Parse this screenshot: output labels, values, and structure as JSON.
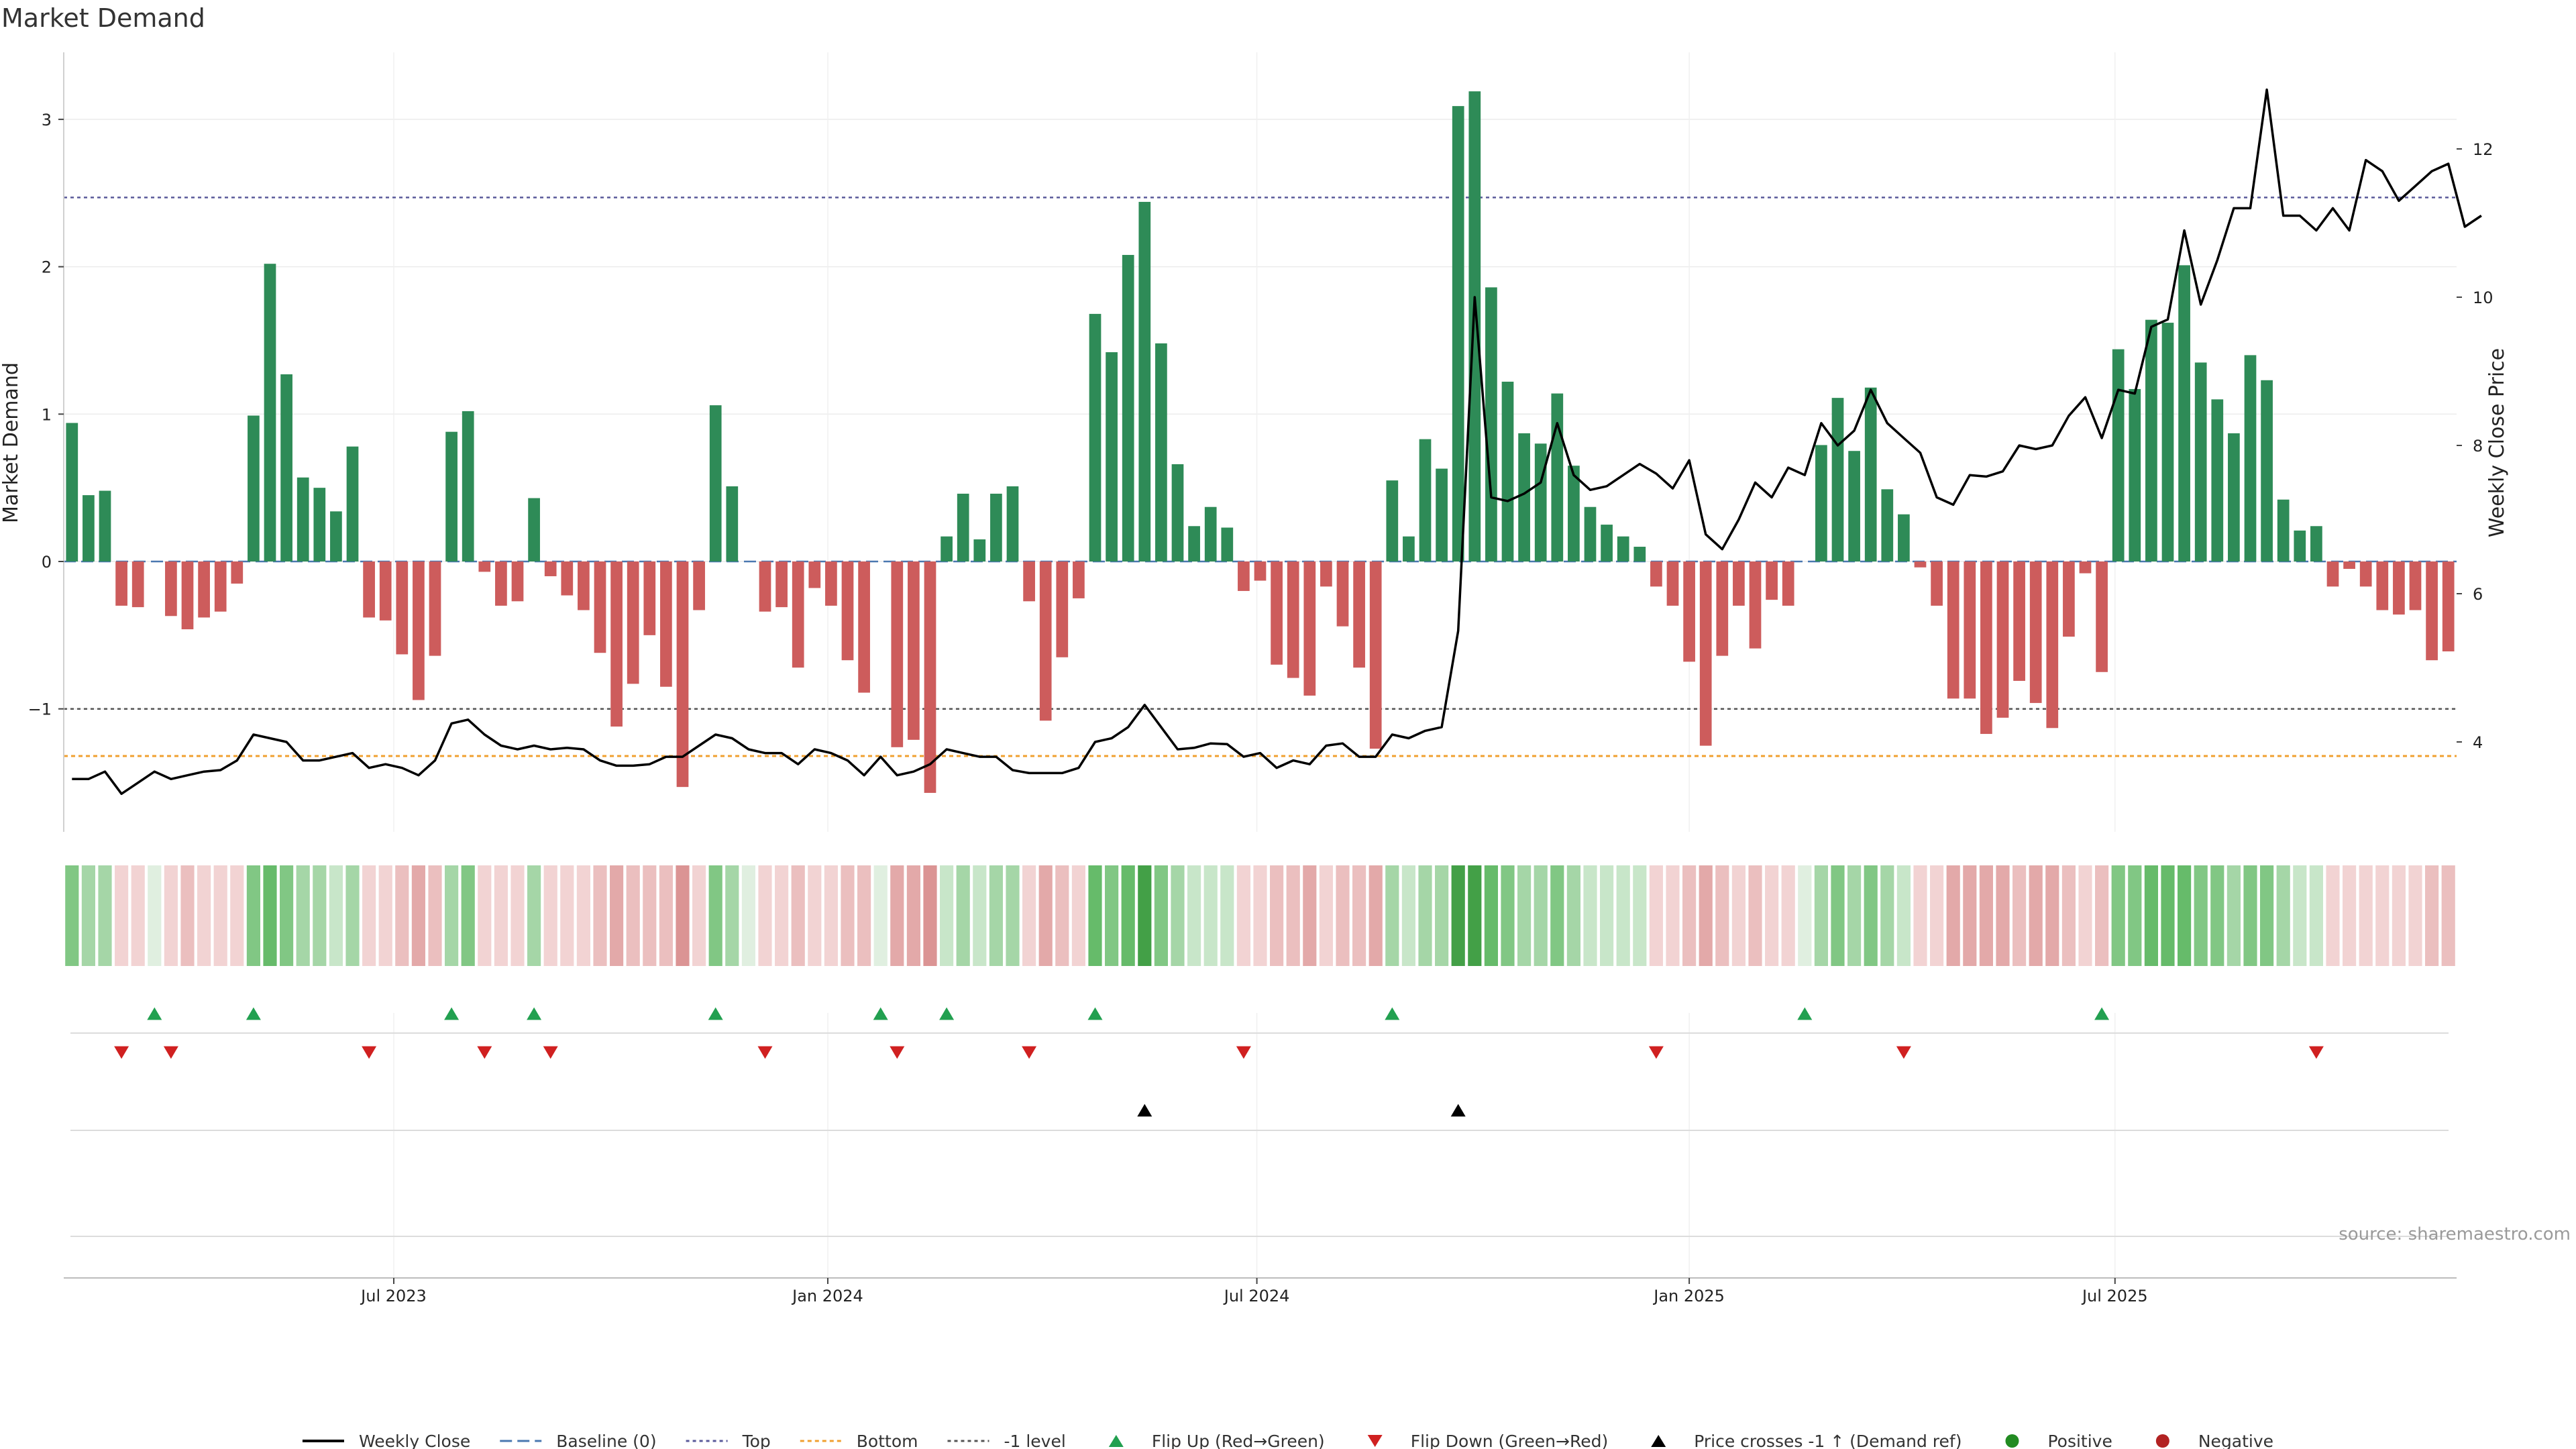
{
  "chart_data": {
    "type": "bar",
    "title": "Market Demand",
    "ylabel": "Market Demand",
    "y2label": "Weekly Close Price",
    "source": "source: sharemaestro.com",
    "ylim": [
      -1.8,
      3.5
    ],
    "y2lim": [
      3.0,
      13.5
    ],
    "yticks": [
      -1,
      0,
      1,
      2,
      3
    ],
    "yticklabels": [
      "−1",
      "0",
      "1",
      "2",
      "3"
    ],
    "y2ticks": [
      4,
      6,
      8,
      10,
      12
    ],
    "y2ticklabels": [
      "4",
      "6",
      "8",
      "10",
      "12"
    ],
    "xticks": [
      {
        "week": 20,
        "label": "Jul 2023"
      },
      {
        "week": 46.3,
        "label": "Jan 2024"
      },
      {
        "week": 72.3,
        "label": "Jul 2024"
      },
      {
        "week": 98.5,
        "label": "Jan 2025"
      },
      {
        "week": 124.3,
        "label": "Jul 2025"
      }
    ],
    "levels": {
      "top": 2.47,
      "bottom": -1.32,
      "minus_one": -1.0,
      "baseline": 0
    },
    "demand": [
      0.94,
      0.45,
      0.48,
      -0.3,
      -0.31,
      0,
      -0.37,
      -0.46,
      -0.38,
      -0.34,
      -0.15,
      0.99,
      2.02,
      1.27,
      0.57,
      0.5,
      0.34,
      0.78,
      -0.38,
      -0.4,
      -0.63,
      -0.94,
      -0.64,
      0.88,
      1.02,
      -0.07,
      -0.3,
      -0.27,
      0.43,
      -0.1,
      -0.23,
      -0.33,
      -0.62,
      -1.12,
      -0.83,
      -0.5,
      -0.85,
      -1.53,
      -0.33,
      1.06,
      0.51,
      0,
      -0.34,
      -0.31,
      -0.72,
      -0.18,
      -0.3,
      -0.67,
      -0.89,
      0,
      -1.26,
      -1.21,
      -1.57,
      0.17,
      0.46,
      0.15,
      0.46,
      0.51,
      -0.27,
      -1.08,
      -0.65,
      -0.25,
      1.68,
      1.42,
      2.08,
      2.44,
      1.48,
      0.66,
      0.24,
      0.37,
      0.23,
      -0.2,
      -0.13,
      -0.7,
      -0.79,
      -0.91,
      -0.17,
      -0.44,
      -0.72,
      -1.27,
      0.55,
      0.17,
      0.83,
      0.63,
      3.09,
      3.19,
      1.86,
      1.22,
      0.87,
      0.8,
      1.14,
      0.65,
      0.37,
      0.25,
      0.17,
      0.1,
      -0.17,
      -0.3,
      -0.68,
      -1.25,
      -0.64,
      -0.3,
      -0.59,
      -0.26,
      -0.3,
      0,
      0.79,
      1.11,
      0.75,
      1.18,
      0.49,
      0.32,
      -0.04,
      -0.3,
      -0.93,
      -0.93,
      -1.17,
      -1.06,
      -0.81,
      -0.96,
      -1.13,
      -0.51,
      -0.08,
      -0.75,
      1.44,
      1.17,
      1.64,
      1.62,
      2.01,
      1.35,
      1.1,
      0.87,
      1.4,
      1.23,
      0.42,
      0.21,
      0.24,
      -0.17,
      -0.05,
      -0.17,
      -0.33,
      -0.36,
      -0.33,
      -0.67,
      -0.61
    ],
    "price": [
      3.5,
      3.5,
      3.6,
      3.3,
      3.45,
      3.6,
      3.5,
      3.55,
      3.6,
      3.62,
      3.75,
      4.1,
      4.05,
      4.0,
      3.75,
      3.75,
      3.8,
      3.85,
      3.65,
      3.7,
      3.65,
      3.55,
      3.75,
      4.25,
      4.3,
      4.1,
      3.95,
      3.9,
      3.95,
      3.9,
      3.92,
      3.9,
      3.75,
      3.68,
      3.68,
      3.7,
      3.8,
      3.8,
      3.95,
      4.1,
      4.05,
      3.9,
      3.85,
      3.85,
      3.7,
      3.9,
      3.85,
      3.75,
      3.55,
      3.8,
      3.55,
      3.6,
      3.7,
      3.9,
      3.85,
      3.8,
      3.8,
      3.62,
      3.58,
      3.58,
      3.58,
      3.65,
      4.0,
      4.05,
      4.2,
      4.5,
      4.2,
      3.9,
      3.92,
      3.98,
      3.97,
      3.8,
      3.85,
      3.65,
      3.75,
      3.7,
      3.95,
      3.98,
      3.8,
      3.8,
      4.1,
      4.05,
      4.15,
      4.2,
      5.5,
      10.0,
      7.3,
      7.25,
      7.35,
      7.5,
      8.3,
      7.6,
      7.4,
      7.45,
      7.6,
      7.75,
      7.62,
      7.42,
      7.8,
      6.8,
      6.6,
      7.0,
      7.5,
      7.3,
      7.7,
      7.6,
      8.3,
      8.0,
      8.2,
      8.75,
      8.3,
      8.1,
      7.9,
      7.3,
      7.2,
      7.6,
      7.58,
      7.65,
      8.0,
      7.95,
      8.0,
      8.4,
      8.65,
      8.1,
      8.75,
      8.7,
      9.6,
      9.7,
      10.9,
      9.9,
      10.5,
      11.2,
      11.2,
      12.8,
      11.1,
      11.1,
      10.9,
      11.2,
      10.9,
      11.85,
      11.7,
      11.3,
      11.5,
      11.7,
      11.8,
      10.95,
      11.1
    ],
    "flip_up": [
      5,
      11,
      23,
      28,
      39,
      49,
      53,
      62,
      80,
      105,
      123
    ],
    "flip_down": [
      3,
      6,
      18,
      25,
      29,
      42,
      50,
      58,
      71,
      96,
      111,
      136
    ],
    "price_cross": [
      65,
      84
    ]
  },
  "legend": [
    {
      "label": "Weekly Close",
      "icon": "black-line"
    },
    {
      "label": "Baseline (0)",
      "icon": "blue-dashed-line"
    },
    {
      "label": "Top",
      "icon": "purple-dotted-line"
    },
    {
      "label": "Bottom",
      "icon": "orange-dotted-line"
    },
    {
      "label": "-1 level",
      "icon": "gray-dotted-line"
    },
    {
      "label": "Flip Up (Red→Green)",
      "icon": "green-triangle-up"
    },
    {
      "label": "Flip Down (Green→Red)",
      "icon": "red-triangle-down"
    },
    {
      "label": "Price crosses -1 ↑ (Demand ref)",
      "icon": "black-triangle-up"
    },
    {
      "label": "Positive",
      "icon": "green-dot"
    },
    {
      "label": "Negative",
      "icon": "red-dot"
    }
  ],
  "colors": {
    "positive": "#2e8b57",
    "negative": "#cd5c5c",
    "price": "#000000",
    "top": "#5a5a9a",
    "bottom": "#f0a030",
    "minus_one": "#555555",
    "baseline": "#4a78b0",
    "flip_up": "#22a050",
    "flip_down": "#d02020"
  }
}
